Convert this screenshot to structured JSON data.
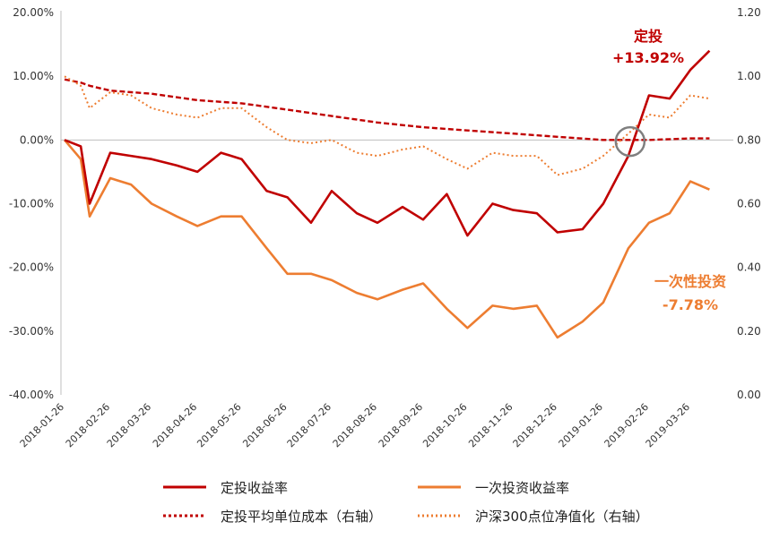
{
  "chart_data": {
    "type": "line",
    "x_dates": [
      "2018-01-26",
      "2018-02-26",
      "2018-03-26",
      "2018-04-26",
      "2018-05-26",
      "2018-06-26",
      "2018-07-26",
      "2018-08-26",
      "2018-09-26",
      "2018-10-26",
      "2018-11-26",
      "2018-12-26",
      "2019-01-26",
      "2019-02-26",
      "2019-03-26"
    ],
    "left_axis": {
      "ticks": [
        "20.00%",
        "10.00%",
        "0.00%",
        "-10.00%",
        "-20.00%",
        "-30.00%",
        "-40.00%"
      ],
      "ylim": [
        -40,
        20
      ]
    },
    "right_axis": {
      "ticks": [
        "1.20",
        "1.00",
        "0.80",
        "0.60",
        "0.40",
        "0.20",
        "0.00"
      ],
      "ylim": [
        0,
        1.2
      ]
    },
    "grid": false,
    "legend_position": "bottom",
    "series": [
      {
        "name": "定投收益率",
        "axis": "left",
        "style": "solid",
        "color": "#c00000",
        "x": [
          "2018-01-26",
          "2018-02-06",
          "2018-02-12",
          "2018-02-26",
          "2018-03-12",
          "2018-03-26",
          "2018-04-12",
          "2018-04-26",
          "2018-05-12",
          "2018-05-26",
          "2018-06-12",
          "2018-06-26",
          "2018-07-12",
          "2018-07-26",
          "2018-08-12",
          "2018-08-26",
          "2018-09-12",
          "2018-09-26",
          "2018-10-12",
          "2018-10-26",
          "2018-11-12",
          "2018-11-26",
          "2018-12-12",
          "2018-12-26",
          "2019-01-12",
          "2019-01-26",
          "2019-02-12",
          "2019-02-26",
          "2019-03-12",
          "2019-03-26",
          "2019-04-08"
        ],
        "y": [
          0.0,
          -1.0,
          -10.0,
          -2.0,
          -2.5,
          -3.0,
          -4.0,
          -5.0,
          -2.0,
          -3.0,
          -8.0,
          -9.0,
          -13.0,
          -8.0,
          -11.5,
          -13.0,
          -10.5,
          -12.5,
          -8.5,
          -15.0,
          -10.0,
          -11.0,
          -11.5,
          -14.5,
          -14.0,
          -10.0,
          -2.5,
          7.0,
          6.5,
          11.0,
          14.0
        ]
      },
      {
        "name": "一次投资收益率",
        "axis": "left",
        "style": "solid",
        "color": "#ed7d31",
        "x": [
          "2018-01-26",
          "2018-02-06",
          "2018-02-12",
          "2018-02-26",
          "2018-03-12",
          "2018-03-26",
          "2018-04-12",
          "2018-04-26",
          "2018-05-12",
          "2018-05-26",
          "2018-06-12",
          "2018-06-26",
          "2018-07-12",
          "2018-07-26",
          "2018-08-12",
          "2018-08-26",
          "2018-09-12",
          "2018-09-26",
          "2018-10-12",
          "2018-10-26",
          "2018-11-12",
          "2018-11-26",
          "2018-12-12",
          "2018-12-26",
          "2019-01-12",
          "2019-01-26",
          "2019-02-12",
          "2019-02-26",
          "2019-03-12",
          "2019-03-26",
          "2019-04-08"
        ],
        "y": [
          0.0,
          -3.0,
          -12.0,
          -6.0,
          -7.0,
          -10.0,
          -12.0,
          -13.5,
          -12.0,
          -12.0,
          -17.0,
          -21.0,
          -21.0,
          -22.0,
          -24.0,
          -25.0,
          -23.5,
          -22.5,
          -26.5,
          -29.5,
          -26.0,
          -26.5,
          -26.0,
          -31.0,
          -28.5,
          -25.5,
          -17.0,
          -13.0,
          -11.5,
          -6.5,
          -7.78
        ]
      },
      {
        "name": "定投平均单位成本（右轴）",
        "axis": "right",
        "style": "dashed",
        "color": "#c00000",
        "x": [
          "2018-01-26",
          "2018-02-06",
          "2018-02-12",
          "2018-02-26",
          "2018-03-26",
          "2018-04-26",
          "2018-05-26",
          "2018-06-26",
          "2018-07-26",
          "2018-08-26",
          "2018-09-26",
          "2018-10-26",
          "2018-11-26",
          "2018-12-26",
          "2019-01-26",
          "2019-02-12",
          "2019-02-26",
          "2019-03-26",
          "2019-04-08"
        ],
        "y": [
          0.99,
          0.98,
          0.97,
          0.955,
          0.945,
          0.925,
          0.915,
          0.895,
          0.875,
          0.855,
          0.84,
          0.83,
          0.82,
          0.81,
          0.8,
          0.8,
          0.8,
          0.805,
          0.805
        ]
      },
      {
        "name": "沪深300点位净值化（右轴）",
        "axis": "right",
        "style": "dotted",
        "color": "#ed7d31",
        "x": [
          "2018-01-26",
          "2018-02-06",
          "2018-02-12",
          "2018-02-26",
          "2018-03-12",
          "2018-03-26",
          "2018-04-12",
          "2018-04-26",
          "2018-05-12",
          "2018-05-26",
          "2018-06-12",
          "2018-06-26",
          "2018-07-12",
          "2018-07-26",
          "2018-08-12",
          "2018-08-26",
          "2018-09-12",
          "2018-09-26",
          "2018-10-12",
          "2018-10-26",
          "2018-11-12",
          "2018-11-26",
          "2018-12-12",
          "2018-12-26",
          "2019-01-12",
          "2019-01-26",
          "2019-02-12",
          "2019-02-26",
          "2019-03-12",
          "2019-03-26",
          "2019-04-08"
        ],
        "y": [
          1.0,
          0.97,
          0.9,
          0.95,
          0.94,
          0.9,
          0.88,
          0.87,
          0.9,
          0.9,
          0.84,
          0.8,
          0.79,
          0.8,
          0.76,
          0.75,
          0.77,
          0.78,
          0.74,
          0.71,
          0.76,
          0.75,
          0.75,
          0.69,
          0.71,
          0.75,
          0.82,
          0.88,
          0.87,
          0.94,
          0.93
        ]
      }
    ],
    "annotations": [
      {
        "id": "dingtou",
        "line1": "定投",
        "line2": "+13.92%",
        "color": "#c00000"
      },
      {
        "id": "lumpsum",
        "line1": "一次性投资",
        "line2": "-7.78%",
        "color": "#ed7d31"
      }
    ],
    "highlight_circle": {
      "x": "2019-02-12",
      "y_right": 0.795,
      "color": "#7f7f7f"
    }
  }
}
